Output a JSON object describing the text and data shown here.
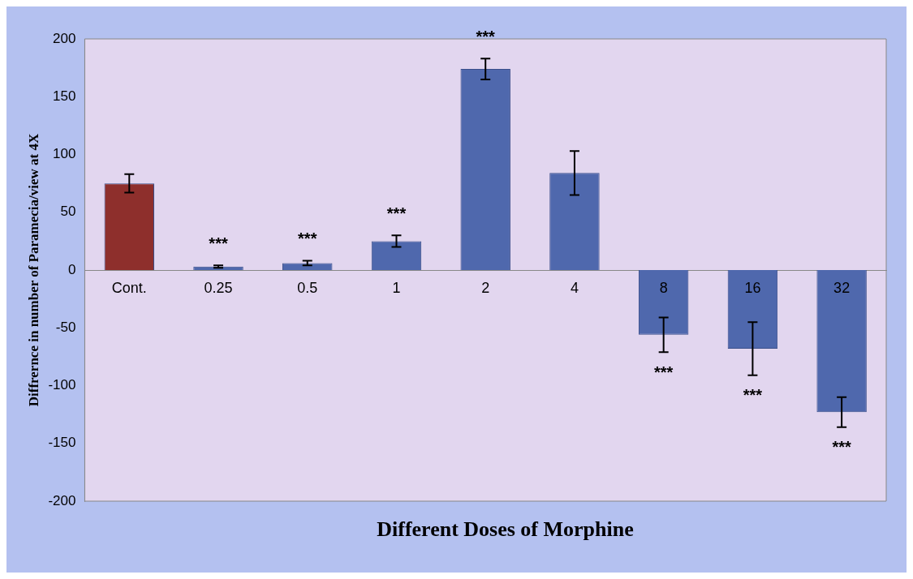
{
  "chart_data": {
    "type": "bar",
    "xlabel": "Different Doses of Morphine",
    "ylabel": "Diffrernce in number of Paramecia/view at 4X",
    "categories": [
      "Cont.",
      "0.25",
      "0.5",
      "1",
      "2",
      "4",
      "8",
      "16",
      "32"
    ],
    "values": [
      75,
      3,
      6,
      25,
      174,
      84,
      -56,
      -68,
      -123
    ],
    "errors": [
      8,
      1,
      2,
      5,
      9,
      19,
      15,
      23,
      13
    ],
    "colors": [
      "#8e2f2c",
      "#4f68ad",
      "#4f68ad",
      "#4f68ad",
      "#4f68ad",
      "#4f68ad",
      "#4f68ad",
      "#4f68ad",
      "#4f68ad"
    ],
    "ylim": [
      -200,
      200
    ],
    "yticks": [
      -200,
      -150,
      -100,
      -50,
      0,
      50,
      100,
      150,
      200
    ],
    "grid": false,
    "annotations": [
      {
        "text": "***",
        "x": "0.25",
        "y": 4
      },
      {
        "text": "***",
        "x": "0.5",
        "y": 8
      },
      {
        "text": "***",
        "x": "1",
        "y": 30
      },
      {
        "text": "***",
        "x": "2",
        "y": 183
      },
      {
        "text": "***",
        "x": "8",
        "y": -71
      },
      {
        "text": "***",
        "x": "16",
        "y": -91
      },
      {
        "text": "***",
        "x": "32",
        "y": -136
      }
    ]
  }
}
